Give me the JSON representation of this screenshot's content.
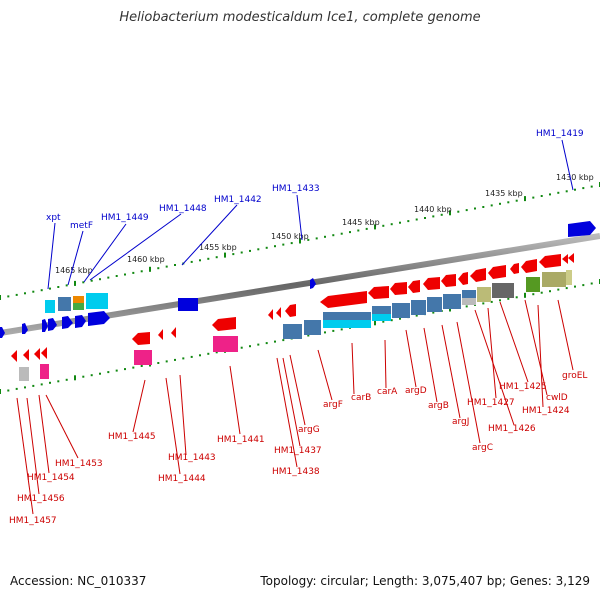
{
  "title": "Heliobacterium modesticaldum Ice1, complete genome",
  "footer": {
    "accession": "Accession: NC_010337",
    "summary": "Topology: circular; Length: 3,075,407 bp; Genes: 3,129"
  },
  "scale_labels": [
    "1430 kbp",
    "1435 kbp",
    "1440 kbp",
    "1445 kbp",
    "1450 kbp",
    "1455 kbp",
    "1460 kbp",
    "1465 kbp"
  ],
  "upper_labels": [
    "HM1_1419",
    "HM1_1433",
    "HM1_1442",
    "HM1_1448",
    "HM1_1449",
    "metF",
    "xpt"
  ],
  "lower_labels": [
    "groEL",
    "HM1_1425",
    "cwlD",
    "HM1_1424",
    "HM1_1427",
    "HM1_1426",
    "argC",
    "argJ",
    "argB",
    "argD",
    "carA",
    "carB",
    "argF",
    "argG",
    "HM1_1437",
    "HM1_1438",
    "HM1_1441",
    "HM1_1443",
    "HM1_1444",
    "HM1_1445",
    "HM1_1453",
    "HM1_1454",
    "HM1_1456",
    "HM1_1457"
  ],
  "colors": {
    "forward_gene": "#0000dd",
    "reverse_gene": "#ee0000",
    "backbone": "#777777",
    "tick": "#118811",
    "cyan": "#00ccee",
    "steelblue": "#4477aa",
    "magenta": "#ee2288",
    "olive": "#aaaa66"
  }
}
